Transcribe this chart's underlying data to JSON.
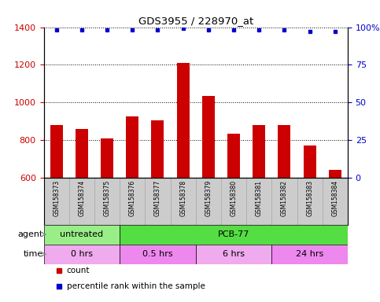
{
  "title": "GDS3955 / 228970_at",
  "samples": [
    "GSM158373",
    "GSM158374",
    "GSM158375",
    "GSM158376",
    "GSM158377",
    "GSM158378",
    "GSM158379",
    "GSM158380",
    "GSM158381",
    "GSM158382",
    "GSM158383",
    "GSM158384"
  ],
  "counts": [
    880,
    860,
    810,
    925,
    905,
    1210,
    1035,
    835,
    880,
    880,
    770,
    640
  ],
  "percentiles": [
    98,
    98,
    98,
    98,
    98,
    99,
    98,
    98,
    98,
    98,
    97,
    97
  ],
  "ylim_left": [
    600,
    1400
  ],
  "ylim_right": [
    0,
    100
  ],
  "yticks_left": [
    600,
    800,
    1000,
    1200,
    1400
  ],
  "yticks_right": [
    0,
    25,
    50,
    75,
    100
  ],
  "bar_color": "#cc0000",
  "dot_color": "#0000cc",
  "bar_width": 0.5,
  "agent_groups": [
    {
      "label": "untreated",
      "start": 0,
      "end": 3,
      "color": "#99ee88"
    },
    {
      "label": "PCB-77",
      "start": 3,
      "end": 12,
      "color": "#55dd44"
    }
  ],
  "time_groups": [
    {
      "label": "0 hrs",
      "start": 0,
      "end": 3,
      "color": "#f0aaee"
    },
    {
      "label": "0.5 hrs",
      "start": 3,
      "end": 6,
      "color": "#ee88ee"
    },
    {
      "label": "6 hrs",
      "start": 6,
      "end": 9,
      "color": "#f0aaee"
    },
    {
      "label": "24 hrs",
      "start": 9,
      "end": 12,
      "color": "#ee88ee"
    }
  ],
  "legend_items": [
    {
      "label": "count",
      "color": "#cc0000"
    },
    {
      "label": "percentile rank within the sample",
      "color": "#0000cc"
    }
  ],
  "label_agent": "agent",
  "label_time": "time",
  "bg_color": "#ffffff",
  "plot_bg_color": "#ffffff",
  "sample_label_bg": "#cccccc",
  "grid_linestyle": "dotted"
}
